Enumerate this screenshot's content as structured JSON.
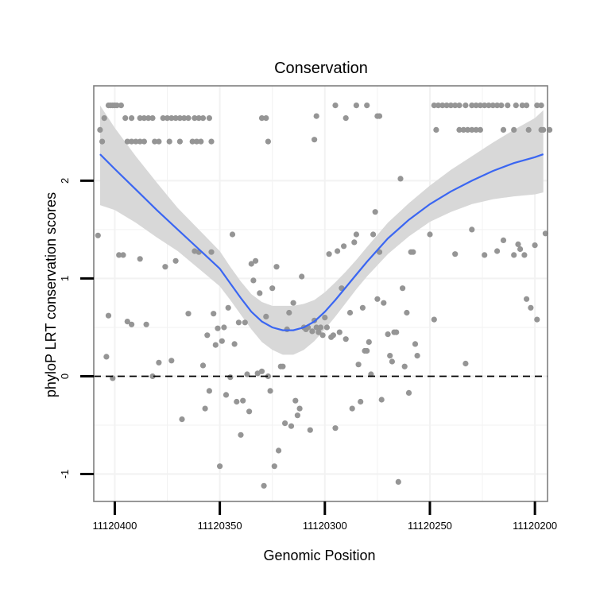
{
  "chart_data": {
    "type": "scatter",
    "title": "Conservation",
    "xlabel": "Genomic Position",
    "ylabel": "phyloP LRT conservation scores",
    "x_reversed": true,
    "xlim": [
      11120410,
      11120194
    ],
    "ylim": [
      -1.28,
      2.97
    ],
    "xticks": [
      11120400,
      11120350,
      11120300,
      11120250,
      11120200
    ],
    "xtick_labels": [
      "11120400",
      "11120350",
      "11120300",
      "11120250",
      "11120200"
    ],
    "yticks": [
      -1,
      0,
      1,
      2
    ],
    "ytick_labels": [
      "-1",
      "0",
      "1",
      "2"
    ],
    "reference_line": {
      "y": 0,
      "style": "dashed",
      "color": "#000000"
    },
    "grid": true,
    "colors": {
      "points": "#959595",
      "smooth": "#3a66f2",
      "ribbon": "#d6d6d6",
      "panel_border": "#7f7f7f",
      "grid": "#f2f2f2"
    },
    "series": [
      {
        "kind": "points",
        "points": [
          [
            11120407,
            2.52
          ],
          [
            11120406,
            2.4
          ],
          [
            11120405,
            2.64
          ],
          [
            11120403,
            2.77
          ],
          [
            11120402,
            2.77
          ],
          [
            11120401,
            2.77
          ],
          [
            11120400,
            2.77
          ],
          [
            11120399,
            2.77
          ],
          [
            11120397,
            2.77
          ],
          [
            11120395,
            2.64
          ],
          [
            11120392,
            2.64
          ],
          [
            11120388,
            2.64
          ],
          [
            11120386,
            2.64
          ],
          [
            11120384,
            2.64
          ],
          [
            11120382,
            2.64
          ],
          [
            11120394,
            2.4
          ],
          [
            11120392,
            2.4
          ],
          [
            11120390,
            2.4
          ],
          [
            11120388,
            2.4
          ],
          [
            11120386,
            2.4
          ],
          [
            11120377,
            2.64
          ],
          [
            11120375,
            2.64
          ],
          [
            11120373,
            2.64
          ],
          [
            11120371,
            2.64
          ],
          [
            11120369,
            2.64
          ],
          [
            11120367,
            2.64
          ],
          [
            11120365,
            2.64
          ],
          [
            11120362,
            2.64
          ],
          [
            11120360,
            2.64
          ],
          [
            11120358,
            2.64
          ],
          [
            11120355,
            2.64
          ],
          [
            11120381,
            2.4
          ],
          [
            11120379,
            2.4
          ],
          [
            11120374,
            2.4
          ],
          [
            11120369,
            2.4
          ],
          [
            11120363,
            2.4
          ],
          [
            11120361,
            2.4
          ],
          [
            11120359,
            2.4
          ],
          [
            11120354,
            2.4
          ],
          [
            11120330,
            2.64
          ],
          [
            11120328,
            2.64
          ],
          [
            11120327,
            2.4
          ],
          [
            11120305,
            2.42
          ],
          [
            11120304,
            2.66
          ],
          [
            11120295,
            2.77
          ],
          [
            11120290,
            2.64
          ],
          [
            11120285,
            2.77
          ],
          [
            11120280,
            2.77
          ],
          [
            11120275,
            2.66
          ],
          [
            11120274,
            2.66
          ],
          [
            11120248,
            2.77
          ],
          [
            11120247,
            2.52
          ],
          [
            11120246,
            2.77
          ],
          [
            11120244,
            2.77
          ],
          [
            11120242,
            2.77
          ],
          [
            11120240,
            2.77
          ],
          [
            11120238,
            2.77
          ],
          [
            11120236,
            2.77
          ],
          [
            11120236,
            2.52
          ],
          [
            11120234,
            2.52
          ],
          [
            11120233,
            2.77
          ],
          [
            11120232,
            2.52
          ],
          [
            11120230,
            2.77
          ],
          [
            11120230,
            2.52
          ],
          [
            11120228,
            2.77
          ],
          [
            11120228,
            2.52
          ],
          [
            11120226,
            2.77
          ],
          [
            11120226,
            2.52
          ],
          [
            11120224,
            2.77
          ],
          [
            11120222,
            2.77
          ],
          [
            11120220,
            2.77
          ],
          [
            11120218,
            2.77
          ],
          [
            11120216,
            2.77
          ],
          [
            11120215,
            2.52
          ],
          [
            11120213,
            2.77
          ],
          [
            11120210,
            2.52
          ],
          [
            11120209,
            2.77
          ],
          [
            11120206,
            2.77
          ],
          [
            11120204,
            2.77
          ],
          [
            11120203,
            2.52
          ],
          [
            11120199,
            2.77
          ],
          [
            11120197,
            2.77
          ],
          [
            11120197,
            2.52
          ],
          [
            11120196,
            2.52
          ],
          [
            11120193,
            2.52
          ],
          [
            11120408,
            1.44
          ],
          [
            11120404,
            0.2
          ],
          [
            11120403,
            0.62
          ],
          [
            11120401,
            -0.02
          ],
          [
            11120398,
            1.24
          ],
          [
            11120396,
            1.24
          ],
          [
            11120394,
            0.56
          ],
          [
            11120392,
            0.53
          ],
          [
            11120388,
            1.2
          ],
          [
            11120385,
            0.53
          ],
          [
            11120382,
            0.0
          ],
          [
            11120379,
            0.14
          ],
          [
            11120376,
            1.12
          ],
          [
            11120373,
            0.16
          ],
          [
            11120371,
            1.18
          ],
          [
            11120368,
            -0.44
          ],
          [
            11120365,
            0.64
          ],
          [
            11120362,
            1.28
          ],
          [
            11120360,
            1.27
          ],
          [
            11120358,
            0.11
          ],
          [
            11120357,
            -0.33
          ],
          [
            11120356,
            0.42
          ],
          [
            11120355,
            -0.15
          ],
          [
            11120354,
            1.27
          ],
          [
            11120353,
            0.64
          ],
          [
            11120352,
            0.32
          ],
          [
            11120351,
            0.49
          ],
          [
            11120350,
            -0.92
          ],
          [
            11120349,
            0.36
          ],
          [
            11120348,
            0.5
          ],
          [
            11120347,
            -0.19
          ],
          [
            11120346,
            0.7
          ],
          [
            11120345,
            -0.01
          ],
          [
            11120344,
            1.45
          ],
          [
            11120343,
            0.33
          ],
          [
            11120342,
            -0.26
          ],
          [
            11120341,
            0.55
          ],
          [
            11120340,
            -0.6
          ],
          [
            11120339,
            -0.25
          ],
          [
            11120338,
            0.55
          ],
          [
            11120337,
            0.02
          ],
          [
            11120336,
            -0.36
          ],
          [
            11120335,
            1.15
          ],
          [
            11120334,
            0.98
          ],
          [
            11120333,
            1.18
          ],
          [
            11120332,
            0.03
          ],
          [
            11120331,
            0.85
          ],
          [
            11120330,
            0.05
          ],
          [
            11120329,
            -1.12
          ],
          [
            11120328,
            0.61
          ],
          [
            11120327,
            0.0
          ],
          [
            11120326,
            -0.15
          ],
          [
            11120325,
            0.9
          ],
          [
            11120324,
            -0.92
          ],
          [
            11120323,
            1.12
          ],
          [
            11120322,
            -0.76
          ],
          [
            11120321,
            0.1
          ],
          [
            11120320,
            0.1
          ],
          [
            11120319,
            -0.48
          ],
          [
            11120318,
            0.48
          ],
          [
            11120317,
            0.65
          ],
          [
            11120316,
            -0.51
          ],
          [
            11120315,
            0.75
          ],
          [
            11120314,
            -0.25
          ],
          [
            11120313,
            -0.4
          ],
          [
            11120312,
            -0.33
          ],
          [
            11120311,
            1.02
          ],
          [
            11120310,
            0.5
          ],
          [
            11120309,
            0.48
          ],
          [
            11120308,
            0.5
          ],
          [
            11120307,
            -0.55
          ],
          [
            11120306,
            0.46
          ],
          [
            11120305,
            0.57
          ],
          [
            11120304,
            0.5
          ],
          [
            11120303,
            0.45
          ],
          [
            11120302,
            0.5
          ],
          [
            11120301,
            0.42
          ],
          [
            11120300,
            0.6
          ],
          [
            11120299,
            0.5
          ],
          [
            11120298,
            1.25
          ],
          [
            11120297,
            0.4
          ],
          [
            11120296,
            0.42
          ],
          [
            11120295,
            -0.53
          ],
          [
            11120294,
            1.28
          ],
          [
            11120293,
            0.45
          ],
          [
            11120292,
            0.9
          ],
          [
            11120291,
            1.33
          ],
          [
            11120290,
            0.38
          ],
          [
            11120288,
            0.65
          ],
          [
            11120287,
            -0.33
          ],
          [
            11120286,
            1.37
          ],
          [
            11120285,
            1.45
          ],
          [
            11120284,
            0.12
          ],
          [
            11120283,
            -0.26
          ],
          [
            11120282,
            0.7
          ],
          [
            11120281,
            0.26
          ],
          [
            11120280,
            0.26
          ],
          [
            11120279,
            0.35
          ],
          [
            11120278,
            0.02
          ],
          [
            11120277,
            1.45
          ],
          [
            11120276,
            1.68
          ],
          [
            11120275,
            0.79
          ],
          [
            11120274,
            1.27
          ],
          [
            11120273,
            -0.24
          ],
          [
            11120272,
            0.75
          ],
          [
            11120270,
            0.43
          ],
          [
            11120269,
            0.21
          ],
          [
            11120268,
            0.15
          ],
          [
            11120267,
            0.45
          ],
          [
            11120266,
            0.45
          ],
          [
            11120265,
            -1.08
          ],
          [
            11120264,
            2.02
          ],
          [
            11120263,
            0.9
          ],
          [
            11120262,
            0.1
          ],
          [
            11120261,
            0.65
          ],
          [
            11120260,
            -0.17
          ],
          [
            11120259,
            1.27
          ],
          [
            11120258,
            1.27
          ],
          [
            11120257,
            0.33
          ],
          [
            11120256,
            0.21
          ],
          [
            11120250,
            1.45
          ],
          [
            11120248,
            0.58
          ],
          [
            11120238,
            1.25
          ],
          [
            11120233,
            0.13
          ],
          [
            11120230,
            1.5
          ],
          [
            11120224,
            1.24
          ],
          [
            11120218,
            1.28
          ],
          [
            11120215,
            1.39
          ],
          [
            11120210,
            1.24
          ],
          [
            11120208,
            1.35
          ],
          [
            11120207,
            1.3
          ],
          [
            11120205,
            1.24
          ],
          [
            11120204,
            0.79
          ],
          [
            11120202,
            0.7
          ],
          [
            11120200,
            1.34
          ],
          [
            11120199,
            0.58
          ],
          [
            11120195,
            1.46
          ]
        ]
      },
      {
        "kind": "smooth",
        "x": [
          11120407,
          11120400,
          11120390,
          11120380,
          11120370,
          11120360,
          11120350,
          11120345,
          11120340,
          11120335,
          11120330,
          11120325,
          11120320,
          11120315,
          11120310,
          11120305,
          11120300,
          11120295,
          11120290,
          11120285,
          11120280,
          11120270,
          11120260,
          11120250,
          11120240,
          11120230,
          11120220,
          11120210,
          11120200,
          11120196
        ],
        "y": [
          2.27,
          2.12,
          1.91,
          1.7,
          1.5,
          1.3,
          1.1,
          0.95,
          0.8,
          0.66,
          0.56,
          0.5,
          0.47,
          0.47,
          0.5,
          0.56,
          0.66,
          0.78,
          0.91,
          1.04,
          1.17,
          1.41,
          1.6,
          1.76,
          1.89,
          2.0,
          2.1,
          2.18,
          2.24,
          2.27
        ],
        "lower": [
          1.75,
          1.7,
          1.57,
          1.42,
          1.28,
          1.1,
          0.92,
          0.78,
          0.63,
          0.48,
          0.35,
          0.27,
          0.22,
          0.22,
          0.27,
          0.36,
          0.48,
          0.61,
          0.75,
          0.89,
          1.02,
          1.25,
          1.43,
          1.58,
          1.68,
          1.76,
          1.81,
          1.84,
          1.86,
          1.88
        ],
        "upper": [
          2.77,
          2.54,
          2.25,
          1.98,
          1.72,
          1.5,
          1.28,
          1.12,
          0.97,
          0.84,
          0.76,
          0.72,
          0.72,
          0.72,
          0.74,
          0.78,
          0.86,
          0.96,
          1.07,
          1.19,
          1.32,
          1.57,
          1.77,
          1.95,
          2.11,
          2.25,
          2.39,
          2.52,
          2.64,
          2.72
        ]
      }
    ]
  }
}
